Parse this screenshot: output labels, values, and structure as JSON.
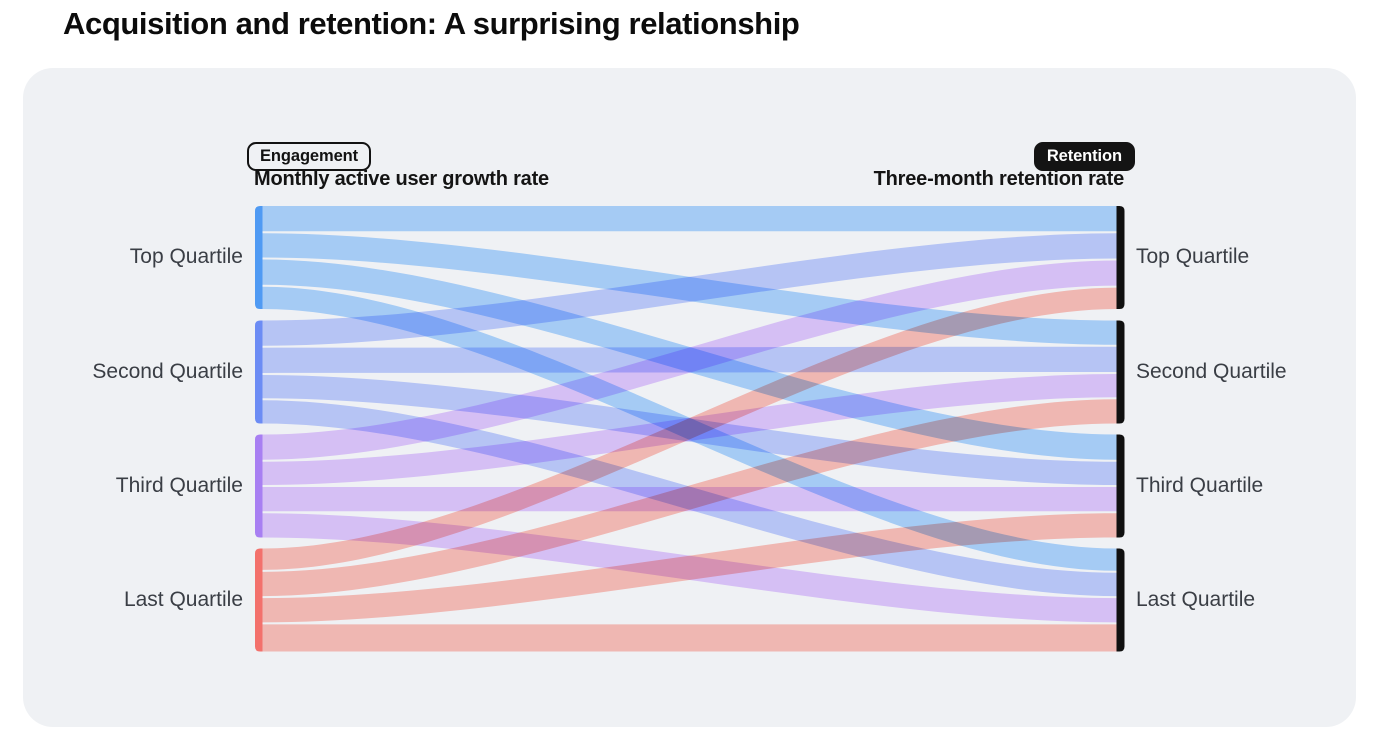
{
  "title": "Acquisition and retention: A surprising relationship",
  "chart_data": {
    "type": "sankey",
    "title": "Acquisition and retention: A surprising relationship",
    "left_header": {
      "badge": "Engagement",
      "subtitle": "Monthly active user growth rate"
    },
    "right_header": {
      "badge": "Retention",
      "subtitle": "Three-month retention rate"
    },
    "categories": [
      "Top Quartile",
      "Second Quartile",
      "Third Quartile",
      "Last Quartile"
    ],
    "flow_matrix_pct": {
      "row_axis": "Monthly active user growth rate quartile (source, left)",
      "col_axis": "Three-month retention rate quartile (target, right)",
      "rows": [
        [
          26,
          25,
          26,
          23
        ],
        [
          26,
          26,
          24,
          24
        ],
        [
          26,
          24,
          25,
          25
        ],
        [
          22,
          25,
          25,
          28
        ]
      ]
    },
    "colors": {
      "left_node": [
        "#4F9AF3",
        "#6C8CF4",
        "#A87FF2",
        "#F3716C"
      ],
      "flow": [
        "#B0D7FF",
        "#C2D0FF",
        "#E4CAFF",
        "#FFC2BA"
      ],
      "right_node": "#101010",
      "card_bg": "#EFF1F4"
    },
    "layout": {
      "left_labels": "outside left of left nodes",
      "right_labels": "outside right of right nodes",
      "headers_position": "top of each column"
    }
  }
}
